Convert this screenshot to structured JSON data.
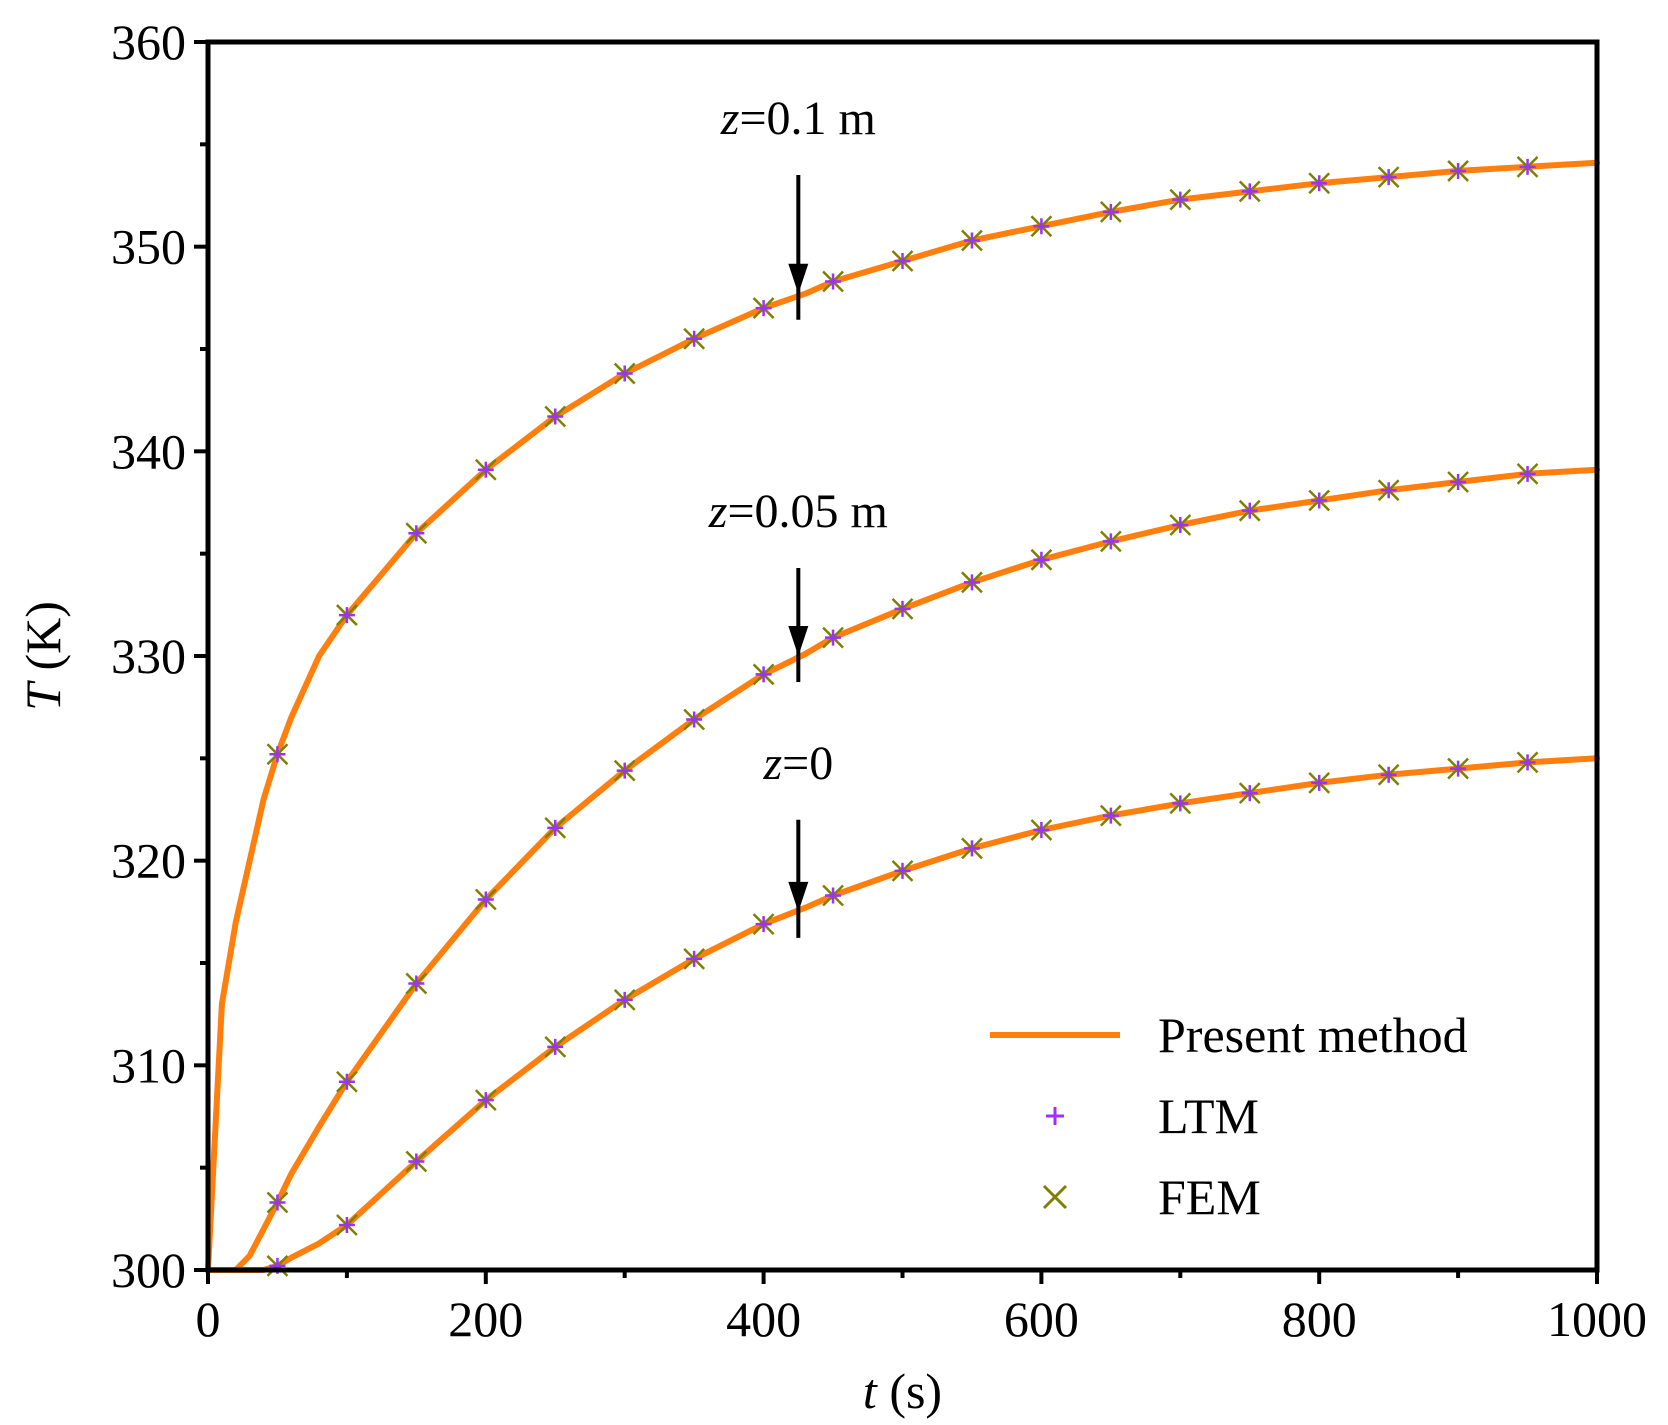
{
  "chart_data": {
    "type": "line",
    "xlabel": {
      "var": "t",
      "unit": " (s)"
    },
    "ylabel": {
      "var": "T",
      "unit": " (K)"
    },
    "xlim": [
      0,
      1000
    ],
    "ylim": [
      300,
      360
    ],
    "x_ticks": [
      0,
      200,
      400,
      600,
      800,
      1000
    ],
    "y_ticks": [
      300,
      310,
      320,
      330,
      340,
      350,
      360
    ],
    "x_ticks_minor": [
      100,
      300,
      500,
      700,
      900
    ],
    "y_ticks_minor": [
      305,
      315,
      325,
      335,
      345,
      355
    ],
    "colors": {
      "line": "#ff7f0e",
      "ltm": "#9b30ff",
      "fem": "#808000",
      "frame": "#000000"
    },
    "series": [
      {
        "name": "Present method",
        "kind": "line",
        "curves": [
          {
            "label": "z=0.1 m",
            "x": [
              0,
              10,
              20,
              30,
              40,
              50,
              60,
              80,
              100,
              150,
              200,
              250,
              300,
              350,
              400,
              430,
              450,
              500,
              550,
              600,
              650,
              700,
              750,
              800,
              850,
              900,
              950,
              1000
            ],
            "y": [
              300,
              313,
              317,
              320,
              323,
              325.2,
              327,
              330,
              332,
              336,
              339.1,
              341.7,
              343.8,
              345.5,
              347,
              347.7,
              348.3,
              349.3,
              350.3,
              351,
              351.7,
              352.3,
              352.7,
              353.1,
              353.4,
              353.7,
              353.9,
              354.1
            ]
          },
          {
            "label": "z=0.05 m",
            "x": [
              0,
              10,
              20,
              30,
              40,
              50,
              60,
              80,
              100,
              150,
              200,
              250,
              300,
              350,
              400,
              430,
              450,
              500,
              550,
              600,
              650,
              700,
              750,
              800,
              850,
              900,
              950,
              1000
            ],
            "y": [
              300,
              300,
              300,
              300.7,
              302,
              303.3,
              304.7,
              307,
              309.2,
              314,
              318.1,
              321.6,
              324.4,
              326.9,
              329.1,
              330.1,
              330.9,
              332.3,
              333.6,
              334.7,
              335.6,
              336.4,
              337.1,
              337.6,
              338.1,
              338.5,
              338.9,
              339.1
            ]
          },
          {
            "label": "z=0",
            "x": [
              0,
              10,
              20,
              30,
              40,
              50,
              60,
              80,
              100,
              150,
              200,
              250,
              300,
              350,
              400,
              430,
              450,
              500,
              550,
              600,
              650,
              700,
              750,
              800,
              850,
              900,
              950,
              1000
            ],
            "y": [
              300,
              300,
              300,
              300,
              300,
              300.2,
              300.6,
              301.3,
              302.2,
              305.3,
              308.3,
              310.9,
              313.2,
              315.2,
              316.9,
              317.7,
              318.3,
              319.5,
              320.6,
              321.5,
              322.2,
              322.8,
              323.3,
              323.8,
              324.2,
              324.5,
              324.8,
              325
            ]
          }
        ]
      },
      {
        "name": "LTM",
        "kind": "plus-markers",
        "curves": [
          {
            "x": [
              50,
              100,
              150,
              200,
              250,
              300,
              350,
              400,
              450,
              500,
              550,
              600,
              650,
              700,
              750,
              800,
              850,
              900,
              950
            ],
            "y": [
              325.2,
              332,
              336,
              339.1,
              341.7,
              343.8,
              345.5,
              347,
              348.3,
              349.3,
              350.3,
              351,
              351.7,
              352.3,
              352.7,
              353.1,
              353.4,
              353.7,
              353.9
            ]
          },
          {
            "x": [
              50,
              100,
              150,
              200,
              250,
              300,
              350,
              400,
              450,
              500,
              550,
              600,
              650,
              700,
              750,
              800,
              850,
              900,
              950
            ],
            "y": [
              303.3,
              309.2,
              314,
              318.1,
              321.6,
              324.4,
              326.9,
              329.1,
              330.9,
              332.3,
              333.6,
              334.7,
              335.6,
              336.4,
              337.1,
              337.6,
              338.1,
              338.5,
              338.9
            ]
          },
          {
            "x": [
              50,
              100,
              150,
              200,
              250,
              300,
              350,
              400,
              450,
              500,
              550,
              600,
              650,
              700,
              750,
              800,
              850,
              900,
              950
            ],
            "y": [
              300.2,
              302.2,
              305.3,
              308.3,
              310.9,
              313.2,
              315.2,
              316.9,
              318.3,
              319.5,
              320.6,
              321.5,
              322.2,
              322.8,
              323.3,
              323.8,
              324.2,
              324.5,
              324.8
            ]
          }
        ]
      },
      {
        "name": "FEM",
        "kind": "x-markers",
        "curves": [
          {
            "x": [
              50,
              100,
              150,
              200,
              250,
              300,
              350,
              400,
              450,
              500,
              550,
              600,
              650,
              700,
              750,
              800,
              850,
              900,
              950
            ],
            "y": [
              325.2,
              332,
              336,
              339.1,
              341.7,
              343.8,
              345.5,
              347,
              348.3,
              349.3,
              350.3,
              351,
              351.7,
              352.3,
              352.7,
              353.1,
              353.4,
              353.7,
              353.9
            ]
          },
          {
            "x": [
              50,
              100,
              150,
              200,
              250,
              300,
              350,
              400,
              450,
              500,
              550,
              600,
              650,
              700,
              750,
              800,
              850,
              900,
              950
            ],
            "y": [
              303.3,
              309.2,
              314,
              318.1,
              321.6,
              324.4,
              326.9,
              329.1,
              330.9,
              332.3,
              333.6,
              334.7,
              335.6,
              336.4,
              337.1,
              337.6,
              338.1,
              338.5,
              338.9
            ]
          },
          {
            "x": [
              50,
              100,
              150,
              200,
              250,
              300,
              350,
              400,
              450,
              500,
              550,
              600,
              650,
              700,
              750,
              800,
              850,
              900,
              950
            ],
            "y": [
              300.2,
              302.2,
              305.3,
              308.3,
              310.9,
              313.2,
              315.2,
              316.9,
              318.3,
              319.5,
              320.6,
              321.5,
              322.2,
              322.8,
              323.3,
              323.8,
              324.2,
              324.5,
              324.8
            ]
          }
        ]
      }
    ],
    "annotations": [
      {
        "var": "z",
        "text": "=0.1 m",
        "arrow_x": 425,
        "arrow_y_from": 353.5,
        "arrow_y_to": 347.7,
        "text_y": 355.5
      },
      {
        "var": "z",
        "text": "=0.05 m",
        "arrow_x": 425,
        "arrow_y_from": 334.3,
        "arrow_y_to": 330.0,
        "text_y": 336.3
      },
      {
        "var": "z",
        "text": "=0",
        "arrow_x": 425,
        "arrow_y_from": 322.0,
        "arrow_y_to": 317.5,
        "text_y": 324.0
      }
    ],
    "legend": {
      "position": "bottom-right",
      "entries": [
        "Present method",
        "LTM",
        "FEM"
      ]
    }
  }
}
